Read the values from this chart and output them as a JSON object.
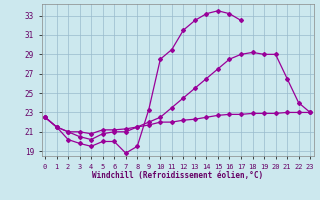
{
  "xlabel": "Windchill (Refroidissement éolien,°C)",
  "background_color": "#cce8ee",
  "grid_color": "#99bbcc",
  "line_color": "#990099",
  "xlim_min": -0.3,
  "xlim_max": 23.3,
  "ylim_min": 18.5,
  "ylim_max": 34.2,
  "xticks": [
    0,
    1,
    2,
    3,
    4,
    5,
    6,
    7,
    8,
    9,
    10,
    11,
    12,
    13,
    14,
    15,
    16,
    17,
    18,
    19,
    20,
    21,
    22,
    23
  ],
  "yticks": [
    19,
    21,
    23,
    25,
    27,
    29,
    31,
    33
  ],
  "line_top_x": [
    0,
    1,
    2,
    3,
    4,
    5,
    6,
    7,
    8,
    9,
    10,
    11,
    12,
    13,
    14,
    15,
    16,
    17
  ],
  "line_top_y": [
    22.5,
    21.5,
    20.2,
    19.8,
    19.5,
    20.0,
    20.0,
    18.8,
    19.5,
    23.3,
    28.5,
    29.5,
    31.5,
    32.5,
    33.2,
    33.5,
    33.2,
    32.5
  ],
  "line_mid_x": [
    0,
    1,
    2,
    3,
    4,
    5,
    6,
    7,
    8,
    9,
    10,
    11,
    12,
    13,
    14,
    15,
    16,
    17,
    18,
    19,
    20,
    21,
    22,
    23
  ],
  "line_mid_y": [
    22.5,
    21.5,
    21.0,
    20.5,
    20.2,
    20.8,
    21.0,
    21.0,
    21.5,
    22.0,
    22.5,
    23.5,
    24.5,
    25.5,
    26.5,
    27.5,
    28.5,
    29.0,
    29.2,
    29.0,
    29.0,
    26.5,
    24.0,
    23.0
  ],
  "line_bot_x": [
    0,
    1,
    2,
    3,
    4,
    5,
    6,
    7,
    8,
    9,
    10,
    11,
    12,
    13,
    14,
    15,
    16,
    17,
    18,
    19,
    20,
    21,
    22,
    23
  ],
  "line_bot_y": [
    22.5,
    21.5,
    21.0,
    21.0,
    20.8,
    21.2,
    21.2,
    21.3,
    21.5,
    21.7,
    22.0,
    22.0,
    22.2,
    22.3,
    22.5,
    22.7,
    22.8,
    22.8,
    22.9,
    22.9,
    22.9,
    23.0,
    23.0,
    23.0
  ],
  "tick_fontsize": 5.0,
  "xlabel_fontsize": 5.5
}
